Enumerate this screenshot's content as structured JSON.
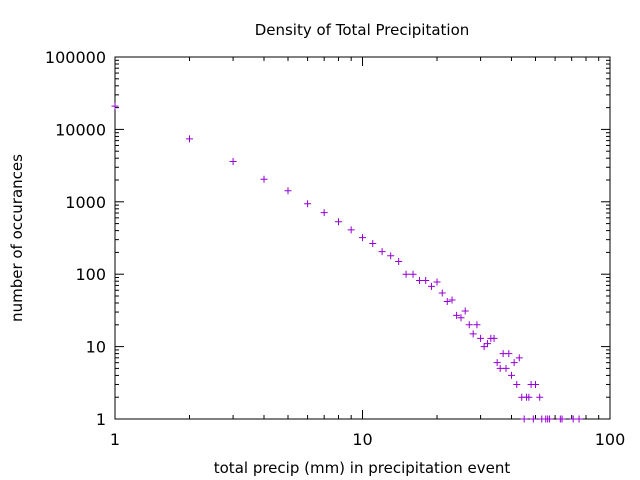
{
  "chart_data": {
    "type": "scatter",
    "title": "Density of Total Precipitation",
    "xlabel": "total precip (mm) in precipitation event",
    "ylabel": "number of occurances",
    "x_scale": "log",
    "y_scale": "log",
    "xlim": [
      1,
      100
    ],
    "ylim": [
      1,
      100000
    ],
    "x_ticks": [
      "1",
      "10",
      "100"
    ],
    "y_ticks": [
      "1",
      "10",
      "100",
      "1000",
      "10000",
      "100000"
    ],
    "grid": false,
    "legend": "none",
    "marker_color": "#9400d3",
    "series": [
      {
        "points": [
          [
            1,
            21000
          ],
          [
            2,
            7400
          ],
          [
            3,
            3600
          ],
          [
            4,
            2050
          ],
          [
            5,
            1420
          ],
          [
            6,
            940
          ],
          [
            7,
            710
          ],
          [
            8,
            530
          ],
          [
            9,
            410
          ],
          [
            10,
            320
          ],
          [
            11,
            265
          ],
          [
            12,
            205
          ],
          [
            13,
            180
          ],
          [
            14,
            150
          ],
          [
            15,
            100
          ],
          [
            16,
            100
          ],
          [
            17,
            82
          ],
          [
            18,
            82
          ],
          [
            19,
            68
          ],
          [
            20,
            78
          ],
          [
            21,
            55
          ],
          [
            22,
            42
          ],
          [
            23,
            44
          ],
          [
            24,
            27
          ],
          [
            25,
            25
          ],
          [
            26,
            31
          ],
          [
            27,
            20
          ],
          [
            28,
            15
          ],
          [
            29,
            20
          ],
          [
            30,
            13
          ],
          [
            31,
            10
          ],
          [
            32,
            11
          ],
          [
            33,
            13
          ],
          [
            34,
            13
          ],
          [
            35,
            6
          ],
          [
            36,
            5
          ],
          [
            37,
            8
          ],
          [
            38,
            5
          ],
          [
            39,
            8
          ],
          [
            40,
            4
          ],
          [
            41,
            6
          ],
          [
            42,
            3
          ],
          [
            43,
            7
          ],
          [
            44,
            2
          ],
          [
            45,
            1
          ],
          [
            46,
            2
          ],
          [
            47,
            2
          ],
          [
            48,
            3
          ],
          [
            49,
            1
          ],
          [
            50,
            3
          ],
          [
            52,
            2
          ],
          [
            53,
            1
          ],
          [
            55,
            1
          ],
          [
            56,
            1
          ],
          [
            57,
            1
          ],
          [
            63,
            1
          ],
          [
            64,
            1
          ],
          [
            71,
            1
          ],
          [
            75,
            1
          ]
        ]
      }
    ]
  }
}
